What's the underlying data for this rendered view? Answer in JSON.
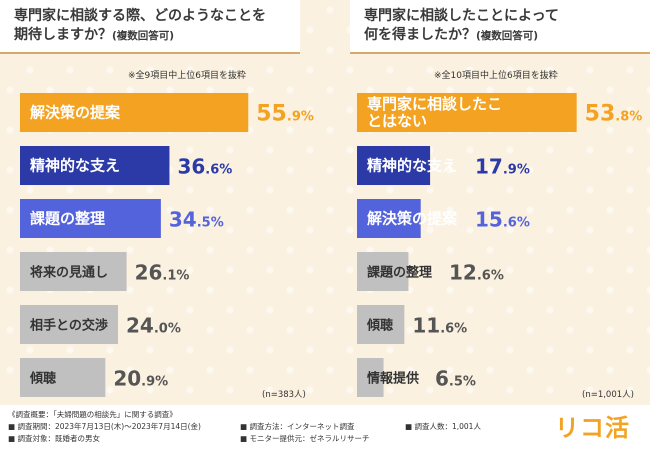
{
  "left": {
    "question_line1": "専門家に相談する際、どのようなことを",
    "question_line2": "期待しますか？",
    "question_sub": "(複数回答可)",
    "note": "※全9項目中上位6項目を抜粋",
    "n": "(n=383人)"
  },
  "right": {
    "question_line1": "専門家に相談したことによって",
    "question_line2": "何を得ましたか？",
    "question_sub": "(複数回答可)",
    "note": "※全10項目中上位6項目を抜粋",
    "n": "(n=1,001人)"
  },
  "footer": {
    "summary": "《調査概要：「夫婦問題の相談先」に関する調査》",
    "period": "■ 調査期間：2023年7月13日(木)〜2023年7月14日(金)",
    "target": "■ 調査対象：既婚者の男女",
    "method": "■ 調査方法：インターネット調査",
    "provider": "■ モニター提供元：ゼネラルリサーチ",
    "count": "■ 調査人数：1,001人",
    "logo": "リコ活"
  },
  "colors": {
    "rank1": "#f3a321",
    "rank2": "#2b3aa7",
    "rank3": "#5363dc",
    "other": "#c0c0c0",
    "value_rank1": "#f3a321",
    "value_rank2": "#2b3aa7",
    "value_rank3": "#5363dc",
    "value_other": "#555555"
  },
  "chart_data": [
    {
      "type": "bar",
      "orientation": "horizontal",
      "categories": [
        "解決策の提案",
        "精神的な支え",
        "課題の整理",
        "将来の見通し",
        "相手との交渉",
        "傾聴"
      ],
      "values": [
        55.9,
        36.6,
        34.5,
        26.1,
        24.0,
        20.9
      ],
      "value_labels": [
        "55.9%",
        "36.6%",
        "34.5%",
        "26.1%",
        "24.0%",
        "20.9%"
      ],
      "unit": "%"
    },
    {
      "type": "bar",
      "orientation": "horizontal",
      "categories": [
        "専門家に相談したことはない",
        "精神的な支え",
        "解決策の提案",
        "課題の整理",
        "傾聴",
        "情報提供"
      ],
      "values": [
        53.8,
        17.9,
        15.6,
        12.6,
        11.6,
        6.5
      ],
      "value_labels": [
        "53.8%",
        "17.9%",
        "15.6%",
        "12.6%",
        "11.6%",
        "6.5%"
      ],
      "unit": "%"
    }
  ]
}
